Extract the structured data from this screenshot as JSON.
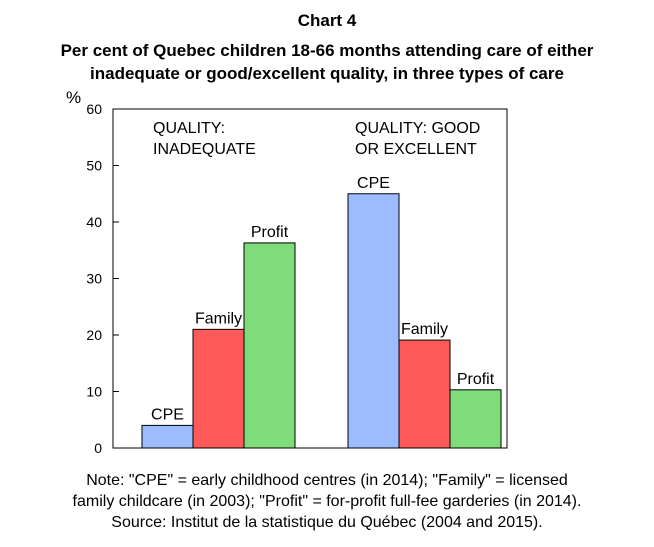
{
  "chart_data": {
    "type": "bar",
    "title": "Chart 4",
    "subtitle": [
      "Per cent of Quebec children 18-66 months attending care of either",
      "inadequate or good/excellent quality, in three types of care"
    ],
    "ylabel": "%",
    "ylim": [
      0,
      60
    ],
    "yticks": [
      "0",
      "10",
      "20",
      "30",
      "40",
      "50",
      "60"
    ],
    "grid": false,
    "groups": [
      {
        "label": [
          "QUALITY:",
          "INADEQUATE"
        ],
        "bars": [
          {
            "name": "CPE",
            "value": 4,
            "color": "#9dbcff"
          },
          {
            "name": "Family",
            "value": 21,
            "color": "#ff5a5a"
          },
          {
            "name": "Profit",
            "value": 36.3,
            "color": "#7fdc7a"
          }
        ]
      },
      {
        "label": [
          "QUALITY: GOOD",
          "OR EXCELLENT"
        ],
        "bars": [
          {
            "name": "CPE",
            "value": 45,
            "color": "#9dbcff"
          },
          {
            "name": "Family",
            "value": 19.1,
            "color": "#ff5a5a"
          },
          {
            "name": "Profit",
            "value": 10.3,
            "color": "#7fdc7a"
          }
        ]
      }
    ]
  },
  "note": [
    "Note: \"CPE\" = early childhood centres (in 2014); \"Family\" = licensed",
    "family childcare (in 2003); \"Profit\" = for-profit full-fee garderies (in 2014).",
    "Source: Institut de la statistique du Québec (2004 and 2015)."
  ]
}
